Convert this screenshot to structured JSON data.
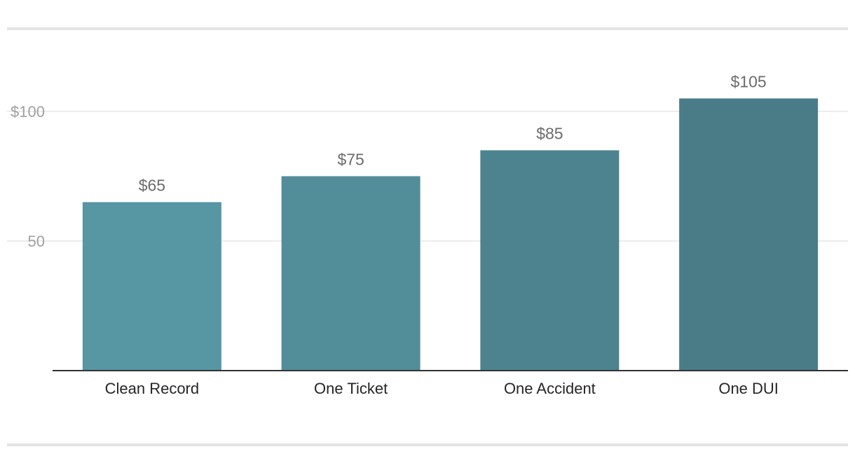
{
  "chart_data": {
    "type": "bar",
    "title": "",
    "xlabel": "",
    "ylabel": "",
    "categories": [
      "Clean Record",
      "One Ticket",
      "One Accident",
      "One DUI"
    ],
    "values": [
      65,
      75,
      85,
      105
    ],
    "data_labels": [
      "$65",
      "$75",
      "$85",
      "$105"
    ],
    "ylim": [
      0,
      120
    ],
    "yticks": [
      50,
      100
    ],
    "ytick_labels": [
      "50",
      "$100"
    ],
    "grid": true,
    "legend": "none",
    "bar_colors": [
      "#5796a3",
      "#528d9a",
      "#4d838f",
      "#4a7c87"
    ],
    "gridline_color": "#e6e6e6",
    "axis_color": "#333333"
  }
}
